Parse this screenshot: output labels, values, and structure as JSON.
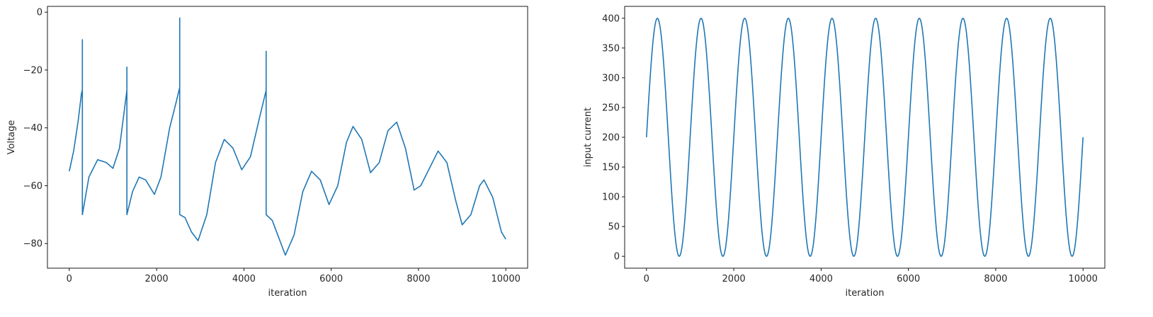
{
  "chart_data": [
    {
      "type": "line",
      "xlabel": "iteration",
      "ylabel": "Voltage",
      "xlim": [
        -500,
        10500
      ],
      "ylim": [
        -88.5,
        2
      ],
      "xticks": [
        0,
        2000,
        4000,
        6000,
        8000,
        10000
      ],
      "yticks": [
        0,
        -20,
        -40,
        -60,
        -80
      ],
      "xtick_labels": [
        "0",
        "2000",
        "4000",
        "6000",
        "8000",
        "10000"
      ],
      "ytick_labels": [
        "0",
        "−20",
        "−40",
        "−60",
        "−80"
      ],
      "line_color": "#1f77b4",
      "series": [
        {
          "x": [
            0,
            100,
            200,
            280,
            300,
            300,
            300,
            450,
            650,
            850,
            1000,
            1150,
            1320,
            1320,
            1320,
            1450,
            1600,
            1750,
            1950,
            2100,
            2300,
            2450,
            2530,
            2530,
            2530,
            2650,
            2800,
            2950,
            3150,
            3350,
            3550,
            3750,
            3950,
            4150,
            4350,
            4510,
            4510,
            4510,
            4650,
            4800,
            4950,
            5150,
            5350,
            5550,
            5750,
            5950,
            6150,
            6350,
            6500,
            6700,
            6900,
            7100,
            7300,
            7500,
            7700,
            7900,
            8050,
            8250,
            8450,
            8650,
            8850,
            9000,
            9200,
            9400,
            9500,
            9700,
            9900,
            10000
          ],
          "y": [
            -55,
            -48,
            -38,
            -28,
            -27,
            -9.5,
            -70,
            -57,
            -51,
            -52,
            -54,
            -47,
            -27,
            -19,
            -70,
            -62,
            -57,
            -58,
            -63,
            -57,
            -40,
            -31,
            -26,
            -2,
            -70,
            -71,
            -76,
            -79,
            -70,
            -52,
            -44,
            -47,
            -54.5,
            -50,
            -37,
            -27,
            -13.5,
            -70,
            -72,
            -78,
            -84,
            -77,
            -62,
            -55,
            -58,
            -66.5,
            -60,
            -45,
            -39.5,
            -44,
            -55.5,
            -52,
            -41,
            -38,
            -47,
            -61.5,
            -60,
            -54,
            -48,
            -52,
            -65,
            -73.5,
            -70,
            -60,
            -58,
            -64,
            -76,
            -78.5
          ]
        }
      ]
    },
    {
      "type": "line",
      "xlabel": "iteration",
      "ylabel": "input current",
      "xlim": [
        -500,
        10500
      ],
      "ylim": [
        -20,
        420
      ],
      "xticks": [
        0,
        2000,
        4000,
        6000,
        8000,
        10000
      ],
      "yticks": [
        0,
        50,
        100,
        150,
        200,
        250,
        300,
        350,
        400
      ],
      "xtick_labels": [
        "0",
        "2000",
        "4000",
        "6000",
        "8000",
        "10000"
      ],
      "ytick_labels": [
        "0",
        "50",
        "100",
        "150",
        "200",
        "250",
        "300",
        "350",
        "400"
      ],
      "line_color": "#1f77b4",
      "series": [
        {
          "function": "200 + 200*sin(2*pi*x/1000)",
          "x_range": [
            0,
            10000
          ]
        }
      ]
    }
  ]
}
